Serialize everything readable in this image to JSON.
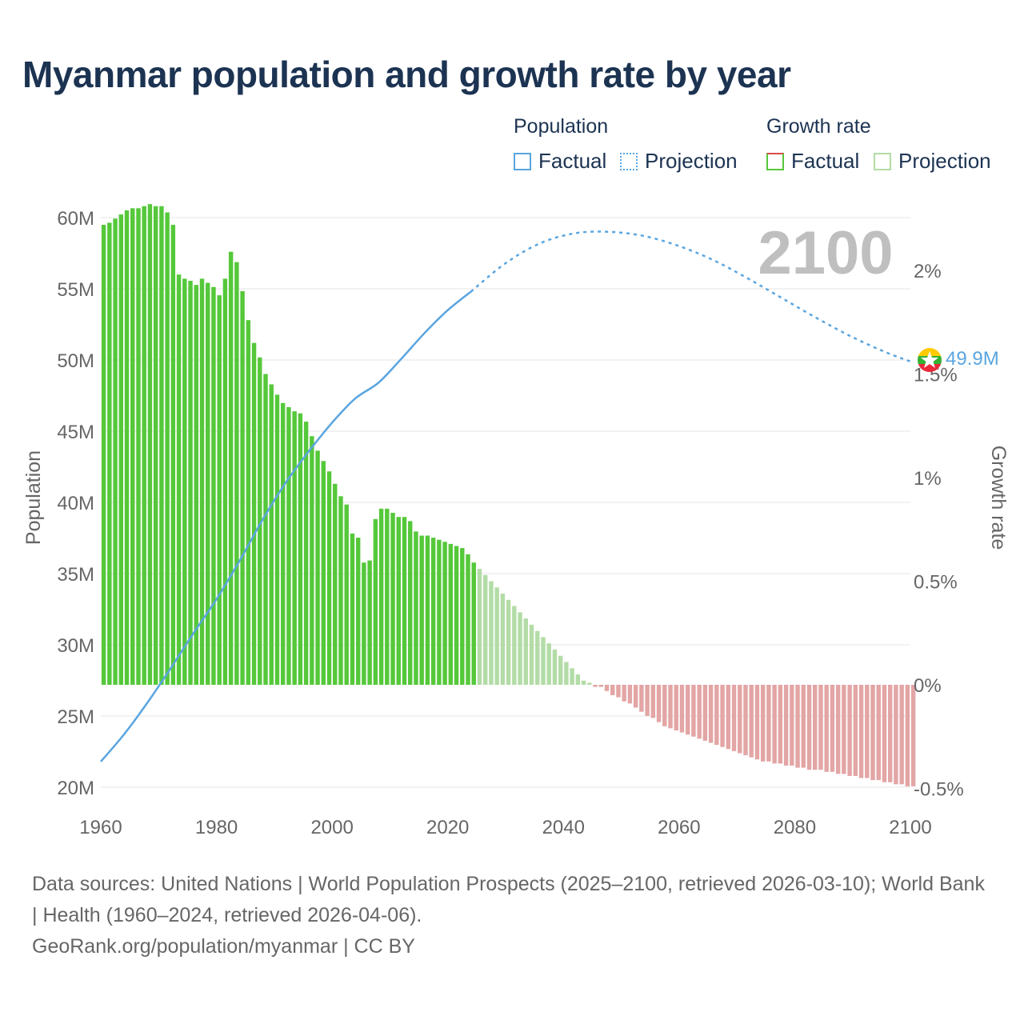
{
  "title": "Myanmar population and growth rate by year",
  "legend": {
    "population_heading": "Population",
    "growth_heading": "Growth rate",
    "factual": "Factual",
    "projection": "Projection"
  },
  "year_label": "2100",
  "end_value_label": "49.9M",
  "footer": {
    "sources": "Data sources: United Nations | World Population Prospects (2025–2100, retrieved 2026-03-10); World Bank | Health (1960–2024, retrieved 2026-04-06).",
    "credit": "GeoRank.org/population/myanmar | CC BY"
  },
  "colors": {
    "title": "#1c3352",
    "population_line": "#5aa5e0",
    "growth_factual_positive": "#55c83a",
    "growth_projection_positive": "#b3dca6",
    "growth_negative": "#e3a5a5",
    "axis_text": "#666666",
    "year_label": "#bfbfbf"
  },
  "chart_data": {
    "type": "bar+line",
    "title": "Myanmar population and growth rate by year",
    "x": {
      "label": "",
      "range": [
        1960,
        2100
      ],
      "ticks": [
        "1960",
        "1980",
        "2000",
        "2020",
        "2040",
        "2060",
        "2080",
        "2100"
      ]
    },
    "y_left": {
      "label": "Population",
      "range": [
        20,
        60
      ],
      "unit": "M",
      "ticks": [
        "20M",
        "25M",
        "30M",
        "35M",
        "40M",
        "45M",
        "50M",
        "55M",
        "60M"
      ]
    },
    "y_right": {
      "label": "Growth rate",
      "range": [
        -0.5,
        2.5
      ],
      "unit": "%",
      "ticks": [
        "-0.5%",
        "0%",
        "0.5%",
        "1%",
        "1.5%",
        "2%"
      ]
    },
    "growth_rate": {
      "factual_years": [
        1960,
        2024
      ],
      "projection_years": [
        2025,
        2100
      ],
      "values": [
        2.22,
        2.23,
        2.25,
        2.27,
        2.29,
        2.3,
        2.3,
        2.31,
        2.32,
        2.31,
        2.31,
        2.28,
        2.22,
        1.98,
        1.96,
        1.95,
        1.93,
        1.96,
        1.94,
        1.92,
        1.88,
        1.96,
        2.09,
        2.04,
        1.9,
        1.76,
        1.65,
        1.58,
        1.5,
        1.45,
        1.4,
        1.36,
        1.34,
        1.32,
        1.31,
        1.27,
        1.2,
        1.13,
        1.08,
        1.03,
        0.97,
        0.91,
        0.87,
        0.73,
        0.71,
        0.59,
        0.6,
        0.8,
        0.85,
        0.85,
        0.83,
        0.81,
        0.81,
        0.79,
        0.74,
        0.72,
        0.72,
        0.71,
        0.7,
        0.69,
        0.68,
        0.67,
        0.66,
        0.63,
        0.59,
        0.56,
        0.53,
        0.5,
        0.47,
        0.44,
        0.41,
        0.38,
        0.35,
        0.32,
        0.29,
        0.26,
        0.23,
        0.2,
        0.17,
        0.14,
        0.11,
        0.08,
        0.05,
        0.02,
        0.01,
        -0.01,
        -0.01,
        -0.03,
        -0.05,
        -0.06,
        -0.08,
        -0.09,
        -0.11,
        -0.13,
        -0.15,
        -0.16,
        -0.18,
        -0.2,
        -0.21,
        -0.22,
        -0.23,
        -0.24,
        -0.25,
        -0.26,
        -0.27,
        -0.28,
        -0.29,
        -0.3,
        -0.31,
        -0.32,
        -0.33,
        -0.34,
        -0.35,
        -0.36,
        -0.37,
        -0.37,
        -0.38,
        -0.38,
        -0.39,
        -0.39,
        -0.4,
        -0.4,
        -0.41,
        -0.41,
        -0.41,
        -0.42,
        -0.42,
        -0.43,
        -0.43,
        -0.44,
        -0.44,
        -0.45,
        -0.45,
        -0.46,
        -0.46,
        -0.47,
        -0.47,
        -0.48,
        -0.48,
        -0.49,
        -0.49
      ]
    },
    "population_millions": {
      "factual_years": [
        1960,
        2024
      ],
      "projection_years": [
        2024,
        2100
      ],
      "points": [
        [
          1960,
          21.8
        ],
        [
          1964,
          23.7
        ],
        [
          1968,
          25.9
        ],
        [
          1972,
          28.3
        ],
        [
          1976,
          30.8
        ],
        [
          1980,
          33.2
        ],
        [
          1984,
          35.9
        ],
        [
          1988,
          38.8
        ],
        [
          1992,
          41.4
        ],
        [
          1996,
          43.6
        ],
        [
          2000,
          45.6
        ],
        [
          2004,
          47.3
        ],
        [
          2008,
          48.4
        ],
        [
          2012,
          50.1
        ],
        [
          2016,
          51.9
        ],
        [
          2020,
          53.5
        ],
        [
          2024,
          54.8
        ],
        [
          2030,
          56.8
        ],
        [
          2036,
          58.2
        ],
        [
          2042,
          58.9
        ],
        [
          2048,
          59.0
        ],
        [
          2054,
          58.7
        ],
        [
          2060,
          58.0
        ],
        [
          2066,
          57.0
        ],
        [
          2072,
          55.7
        ],
        [
          2078,
          54.3
        ],
        [
          2084,
          52.9
        ],
        [
          2090,
          51.6
        ],
        [
          2096,
          50.5
        ],
        [
          2100,
          49.9
        ]
      ]
    },
    "annotations": [
      "2100",
      "49.9M"
    ]
  }
}
